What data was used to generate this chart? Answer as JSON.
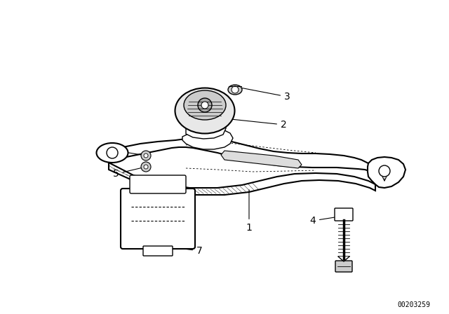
{
  "background_color": "#ffffff",
  "line_color": "#000000",
  "fig_width": 6.4,
  "fig_height": 4.48,
  "dpi": 100,
  "watermark_text": "00203259",
  "watermark_fontsize": 7
}
